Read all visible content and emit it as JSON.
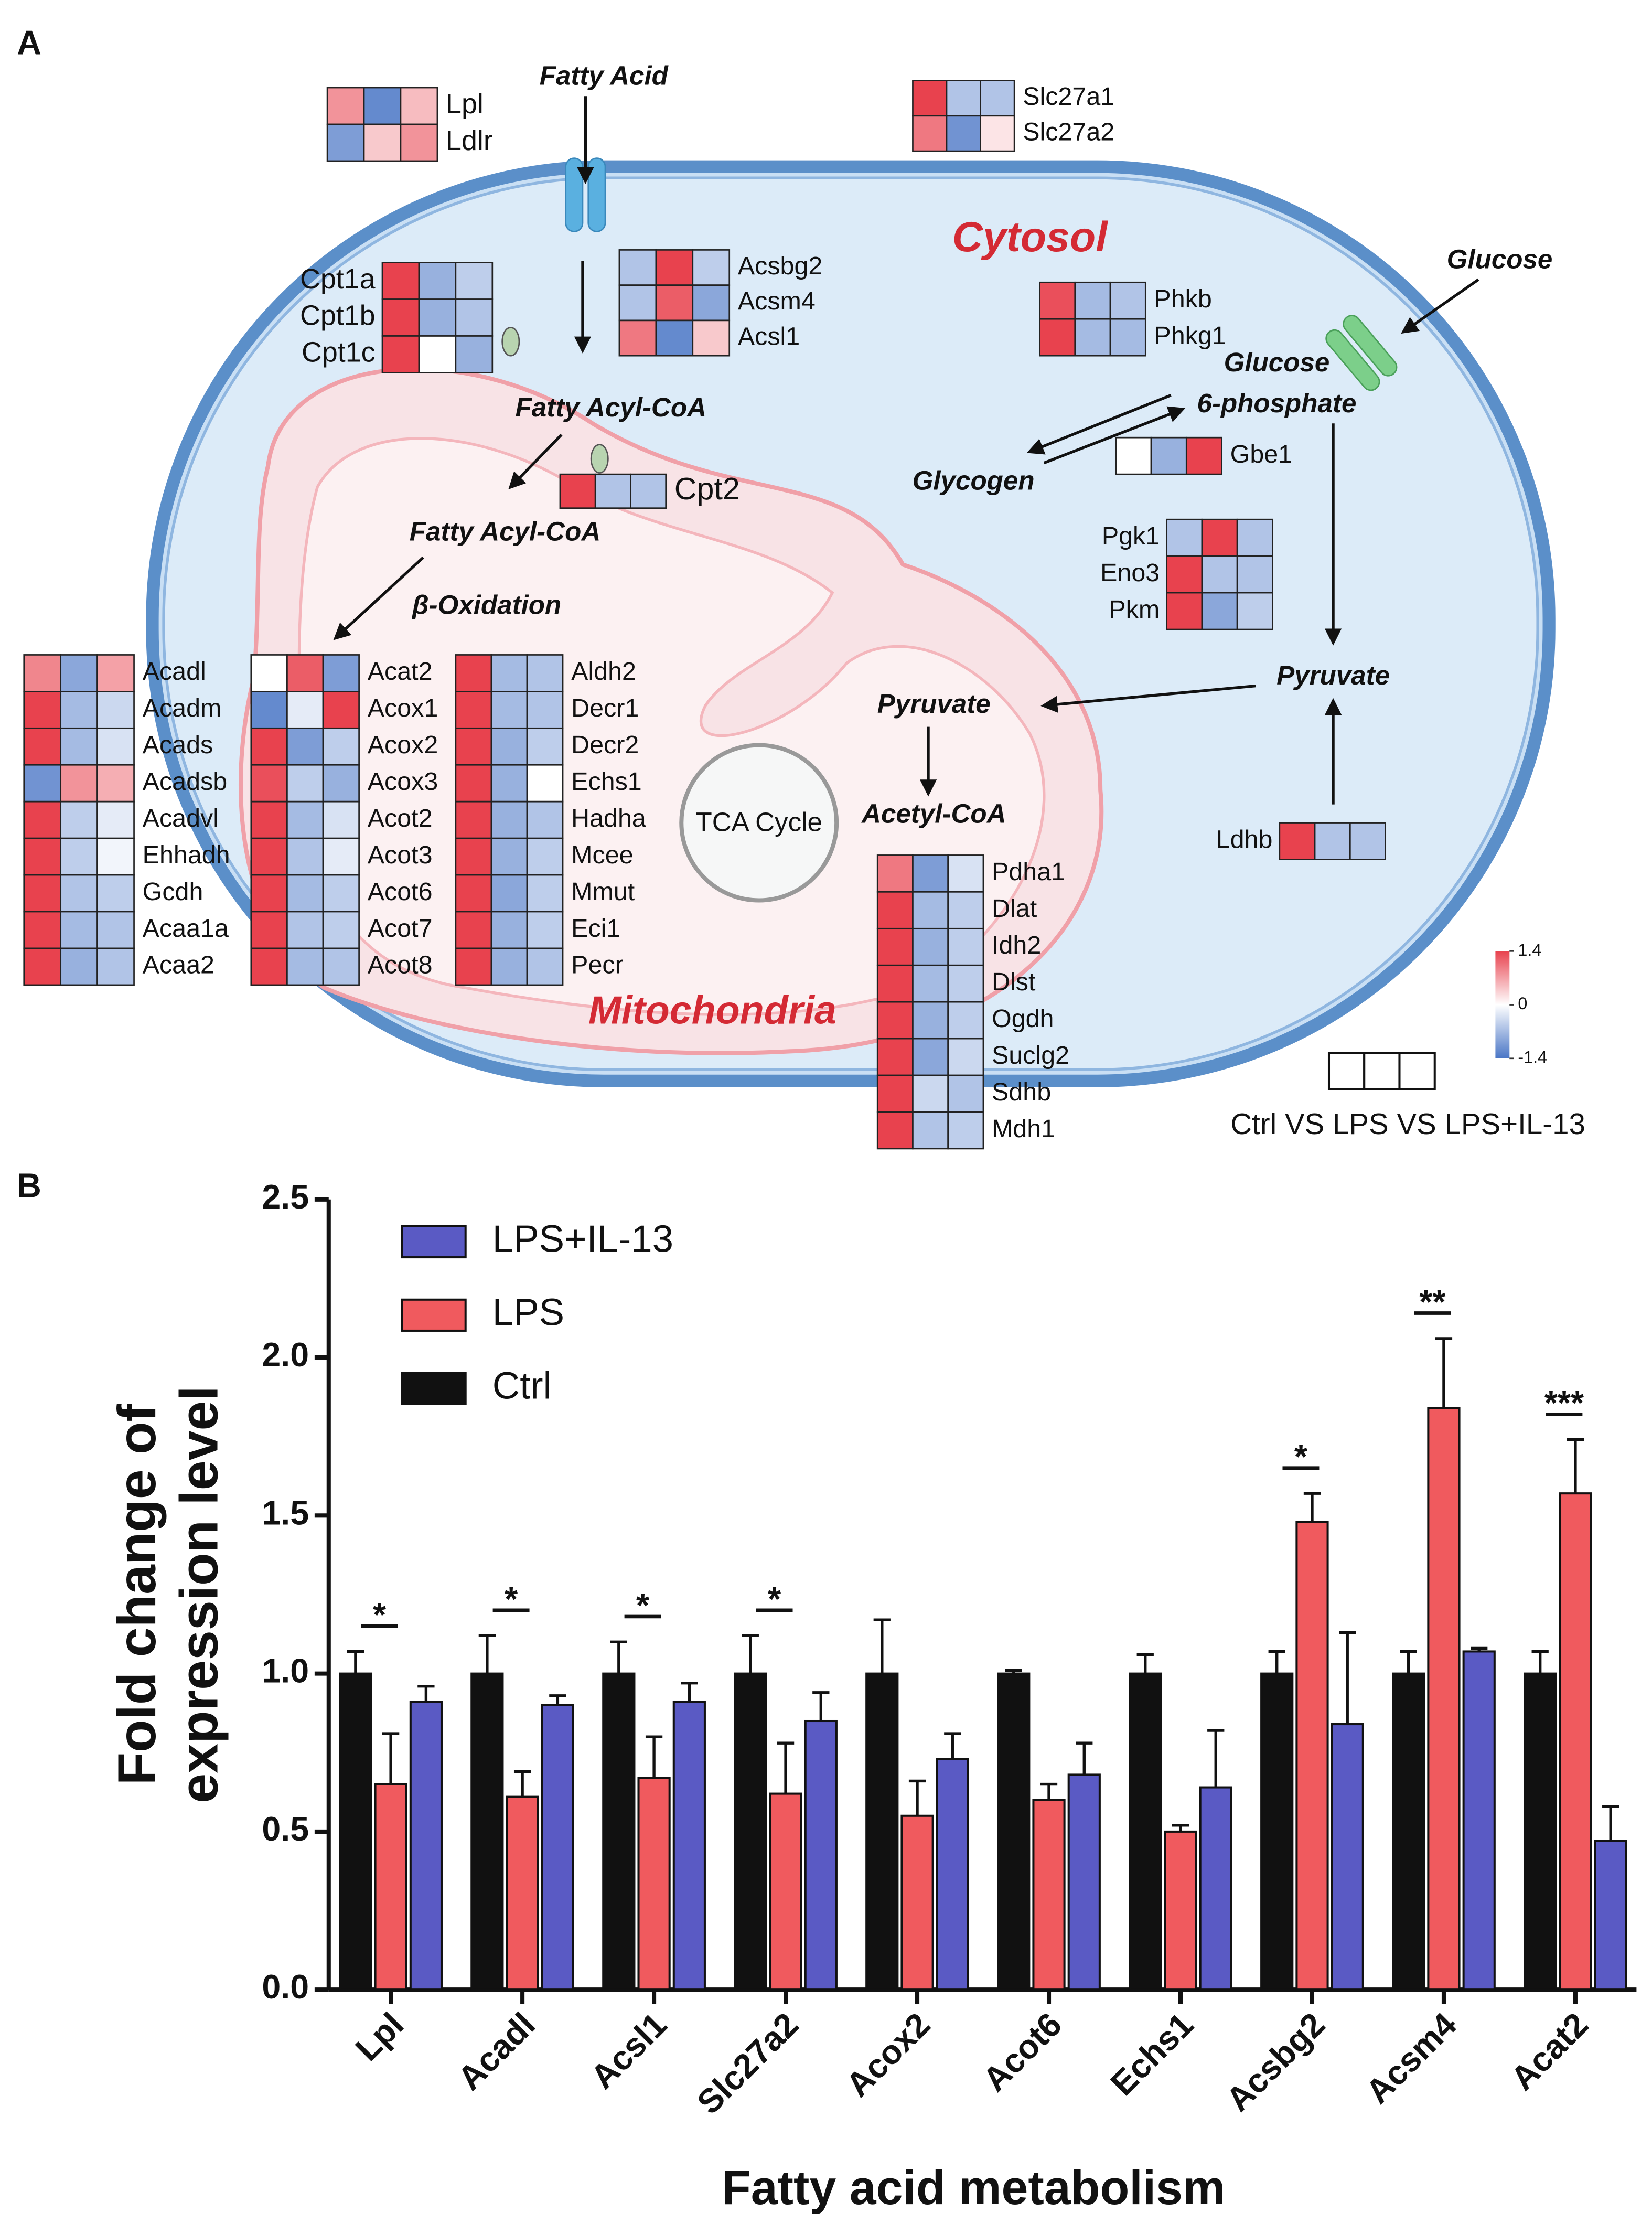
{
  "panel_a": {
    "label": "A",
    "cytosol": "Cytosol",
    "mitochondria": "Mitochondria",
    "tca": "TCA Cycle",
    "metabolites": [
      "Fatty Acid",
      "Fatty Acyl-CoA",
      "Fatty Acyl-CoA",
      "β-Oxidation",
      "Glucose",
      "Glucose",
      "6-phosphate",
      "Glycogen",
      "Pyruvate",
      "Pyruvate",
      "Acetyl-CoA"
    ],
    "heatmaps": [
      {
        "genes": [
          "Lpl",
          "Ldlr"
        ],
        "values": [
          [
            0.8,
            -1.2,
            0.5
          ],
          [
            -1.0,
            0.4,
            0.8
          ]
        ]
      },
      {
        "genes": [
          "Slc27a1",
          "Slc27a2"
        ],
        "values": [
          [
            1.4,
            -0.6,
            -0.6
          ],
          [
            1.0,
            -1.1,
            0.2
          ]
        ]
      },
      {
        "genes": [
          "Cpt1a",
          "Cpt1b",
          "Cpt1c"
        ],
        "values": [
          [
            1.4,
            -0.8,
            -0.5
          ],
          [
            1.4,
            -0.8,
            -0.6
          ],
          [
            1.4,
            0,
            -0.8
          ]
        ]
      },
      {
        "genes": [
          "Acsbg2",
          "Acsm4",
          "Acsl1"
        ],
        "values": [
          [
            -0.6,
            1.4,
            -0.5
          ],
          [
            -0.6,
            1.2,
            -0.9
          ],
          [
            1.0,
            -1.2,
            0.4
          ]
        ]
      },
      {
        "genes": [
          "Phkb",
          "Phkg1"
        ],
        "values": [
          [
            1.3,
            -0.7,
            -0.6
          ],
          [
            1.4,
            -0.7,
            -0.7
          ]
        ]
      },
      {
        "genes": [
          "Cpt2"
        ],
        "values": [
          [
            1.4,
            -0.6,
            -0.6
          ]
        ]
      },
      {
        "genes": [
          "Gbe1"
        ],
        "values": [
          [
            0,
            -0.8,
            1.4
          ]
        ]
      },
      {
        "genes": [
          "Pgk1",
          "Eno3",
          "Pkm"
        ],
        "values": [
          [
            -0.6,
            1.4,
            -0.6
          ],
          [
            1.4,
            -0.6,
            -0.6
          ],
          [
            1.4,
            -0.9,
            -0.5
          ]
        ]
      },
      {
        "genes": [
          "Ldhb"
        ],
        "values": [
          [
            1.4,
            -0.6,
            -0.6
          ]
        ]
      },
      {
        "genes": [
          "Acadl",
          "Acadm",
          "Acads",
          "Acadsb",
          "Acadvl",
          "Ehhadh",
          "Gcdh",
          "Acaa1a",
          "Acaa2"
        ],
        "values": [
          [
            0.9,
            -0.9,
            0.7
          ],
          [
            1.4,
            -0.7,
            -0.4
          ],
          [
            1.4,
            -0.7,
            -0.3
          ],
          [
            -1.1,
            0.8,
            0.6
          ],
          [
            1.4,
            -0.5,
            -0.2
          ],
          [
            1.4,
            -0.5,
            -0.1
          ],
          [
            1.4,
            -0.6,
            -0.5
          ],
          [
            1.4,
            -0.7,
            -0.6
          ],
          [
            1.4,
            -0.8,
            -0.6
          ]
        ]
      },
      {
        "genes": [
          "Acat2",
          "Acox1",
          "Acox2",
          "Acox3",
          "Acot2",
          "Acot3",
          "Acot6",
          "Acot7",
          "Acot8"
        ],
        "values": [
          [
            0,
            1.2,
            -1.0
          ],
          [
            -1.2,
            -0.2,
            1.4
          ],
          [
            1.4,
            -1.0,
            -0.5
          ],
          [
            1.3,
            -0.5,
            -0.8
          ],
          [
            1.4,
            -0.7,
            -0.3
          ],
          [
            1.4,
            -0.6,
            -0.2
          ],
          [
            1.4,
            -0.7,
            -0.5
          ],
          [
            1.4,
            -0.6,
            -0.5
          ],
          [
            1.4,
            -0.7,
            -0.6
          ]
        ]
      },
      {
        "genes": [
          "Aldh2",
          "Decr1",
          "Decr2",
          "Echs1",
          "Hadha",
          "Mcee",
          "Mmut",
          "Eci1",
          "Pecr"
        ],
        "values": [
          [
            1.4,
            -0.7,
            -0.6
          ],
          [
            1.4,
            -0.7,
            -0.6
          ],
          [
            1.4,
            -0.8,
            -0.5
          ],
          [
            1.4,
            -0.8,
            0
          ],
          [
            1.4,
            -0.8,
            -0.6
          ],
          [
            1.4,
            -0.8,
            -0.5
          ],
          [
            1.4,
            -0.9,
            -0.5
          ],
          [
            1.4,
            -0.8,
            -0.5
          ],
          [
            1.4,
            -0.8,
            -0.6
          ]
        ]
      },
      {
        "genes": [
          "Pdha1",
          "Dlat",
          "Idh2",
          "Dlst",
          "Ogdh",
          "Suclg2",
          "Sdhb",
          "Mdh1"
        ],
        "values": [
          [
            1.0,
            -1.0,
            -0.3
          ],
          [
            1.4,
            -0.7,
            -0.5
          ],
          [
            1.4,
            -0.8,
            -0.5
          ],
          [
            1.4,
            -0.7,
            -0.5
          ],
          [
            1.4,
            -0.8,
            -0.5
          ],
          [
            1.4,
            -0.9,
            -0.4
          ],
          [
            1.4,
            -0.4,
            -0.6
          ],
          [
            1.4,
            -0.6,
            -0.5
          ]
        ]
      }
    ],
    "colorbar": {
      "lim": [
        -1.4,
        1.4
      ],
      "ticks": [
        1.4,
        0,
        -1.4
      ],
      "colors": [
        "#4a76c6",
        "#ffffff",
        "#e8424e"
      ]
    },
    "legend_text": "Ctrl VS LPS VS LPS+IL-13"
  },
  "chart_data": {
    "type": "bar",
    "panel_label": "B",
    "xlabel": "Fatty acid metabolism",
    "ylabel": [
      "Fold change of",
      "expression level"
    ],
    "categories": [
      "Lpl",
      "Acadl",
      "Acsl1",
      "Slc27a2",
      "Acox2",
      "Acot6",
      "Echs1",
      "Acsbg2",
      "Acsm4",
      "Acat2"
    ],
    "series": [
      {
        "name": "Ctrl",
        "color": "#111111",
        "values": [
          1.0,
          1.0,
          1.0,
          1.0,
          1.0,
          1.0,
          1.0,
          1.0,
          1.0,
          1.0
        ],
        "errors": [
          0.07,
          0.12,
          0.1,
          0.12,
          0.17,
          0.01,
          0.06,
          0.07,
          0.07,
          0.07
        ]
      },
      {
        "name": "LPS",
        "color": "#f05a5e",
        "values": [
          0.65,
          0.61,
          0.67,
          0.62,
          0.55,
          0.6,
          0.5,
          1.48,
          1.84,
          1.57
        ],
        "errors": [
          0.16,
          0.08,
          0.13,
          0.16,
          0.11,
          0.05,
          0.02,
          0.09,
          0.22,
          0.17
        ]
      },
      {
        "name": "LPS+IL-13",
        "color": "#5a5ac4",
        "values": [
          0.91,
          0.9,
          0.91,
          0.85,
          0.73,
          0.68,
          0.64,
          0.84,
          1.07,
          0.47
        ],
        "errors": [
          0.05,
          0.03,
          0.06,
          0.09,
          0.08,
          0.1,
          0.18,
          0.29,
          0.01,
          0.11
        ]
      }
    ],
    "significance": [
      "*",
      "*",
      "*",
      "*",
      null,
      null,
      null,
      "*",
      "**",
      "***"
    ],
    "ylim": [
      0,
      2.5
    ],
    "yticks": [
      {
        "value": 0,
        "label": "0.0"
      },
      {
        "value": 0.5,
        "label": "0.5"
      },
      {
        "value": 1,
        "label": "1.0"
      },
      {
        "value": 1.5,
        "label": "1.5"
      },
      {
        "value": 2,
        "label": "2.0"
      },
      {
        "value": 2.5,
        "label": "2.5"
      }
    ],
    "legend": "upper-left"
  }
}
